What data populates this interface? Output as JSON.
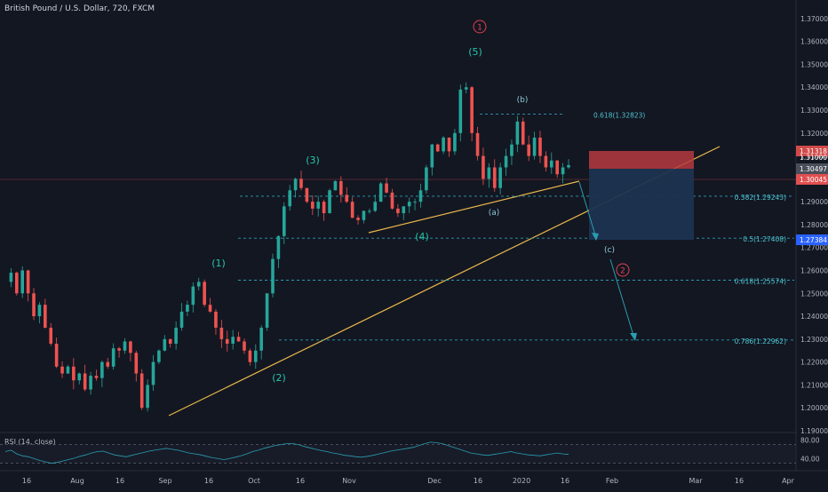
{
  "chart_data": {
    "type": "candlestick",
    "title": "British Pound / U.S. Dollar, 720, FXCM",
    "y_ticks": [
      "1.37000",
      "1.36000",
      "1.35000",
      "1.34000",
      "1.33000",
      "1.32000",
      "1.31000",
      "1.30000",
      "1.29000",
      "1.28000",
      "1.27000",
      "1.26000",
      "1.25000",
      "1.24000",
      "1.23000",
      "1.22000",
      "1.21000",
      "1.20000",
      "1.19000"
    ],
    "ylim": [
      1.19,
      1.375
    ],
    "x_ticks": [
      "16",
      "Aug",
      "16",
      "Sep",
      "16",
      "Oct",
      "16",
      "Nov",
      "Dec",
      "16",
      "2020",
      "16",
      "Feb",
      "Mar",
      "16",
      "Apr"
    ],
    "price_tags": [
      {
        "label": "1.31318",
        "color": "#d14a4a"
      },
      {
        "label": "1.31000",
        "color": "#131722"
      },
      {
        "label": "1.30497",
        "color": "#4a4e5a"
      },
      {
        "label": "1.30045",
        "color": "#e05050"
      },
      {
        "label": "1.27384",
        "color": "#2962ff"
      }
    ],
    "fib_levels": [
      {
        "label": "0.618(1.32823)",
        "value": 1.32823
      },
      {
        "label": "0.382(1.29243)",
        "value": 1.29243
      },
      {
        "label": "0.5(1.27408)",
        "value": 1.27408
      },
      {
        "label": "0.618(1.25574)",
        "value": 1.25574
      },
      {
        "label": "0.786(1.22962)",
        "value": 1.22962
      }
    ],
    "wave_labels": [
      "(1)",
      "(2)",
      "(3)",
      "(4)",
      "(5)",
      "(a)",
      "(b)",
      "(c)"
    ],
    "circled_labels": [
      "1",
      "2"
    ],
    "price_path": [
      1.255,
      1.259,
      1.25,
      1.26,
      1.25,
      1.24,
      1.245,
      1.235,
      1.228,
      1.218,
      1.215,
      1.218,
      1.212,
      1.215,
      1.208,
      1.214,
      1.213,
      1.22,
      1.218,
      1.226,
      1.225,
      1.229,
      1.224,
      1.215,
      1.2,
      1.21,
      1.22,
      1.225,
      1.23,
      1.228,
      1.235,
      1.242,
      1.245,
      1.253,
      1.255,
      1.245,
      1.242,
      1.235,
      1.23,
      1.228,
      1.231,
      1.229,
      1.225,
      1.22,
      1.225,
      1.235,
      1.25,
      1.265,
      1.275,
      1.288,
      1.295,
      1.3,
      1.296,
      1.29,
      1.287,
      1.29,
      1.285,
      1.295,
      1.299,
      1.293,
      1.29,
      1.283,
      1.282,
      1.286,
      1.286,
      1.29,
      1.298,
      1.294,
      1.287,
      1.285,
      1.288,
      1.29,
      1.29,
      1.295,
      1.305,
      1.315,
      1.312,
      1.318,
      1.312,
      1.32,
      1.339,
      1.34,
      1.32,
      1.31,
      1.3,
      1.305,
      1.296,
      1.305,
      1.31,
      1.315,
      1.325,
      1.315,
      1.31,
      1.318,
      1.31,
      1.305,
      1.308,
      1.302,
      1.305,
      1.306
    ],
    "rsi": {
      "label": "RSI (14, close)",
      "ticks": [
        "80.00",
        "40.00"
      ],
      "levels": [
        70,
        30
      ],
      "values": [
        55,
        58,
        50,
        46,
        44,
        40,
        36,
        33,
        30,
        32,
        35,
        38,
        41,
        45,
        48,
        52,
        55,
        56,
        52,
        48,
        46,
        44,
        47,
        50,
        53,
        56,
        58,
        60,
        62,
        60,
        58,
        55,
        52,
        50,
        48,
        45,
        42,
        40,
        38,
        40,
        43,
        46,
        50,
        55,
        58,
        62,
        65,
        68,
        70,
        72,
        72,
        70,
        66,
        63,
        60,
        57,
        55,
        52,
        50,
        47,
        46,
        44,
        43,
        45,
        47,
        50,
        53,
        56,
        58,
        60,
        62,
        64,
        68,
        72,
        75,
        74,
        72,
        68,
        64,
        60,
        56,
        52,
        50,
        48,
        47,
        49,
        51,
        53,
        55,
        52,
        50,
        48,
        47,
        46,
        48,
        50,
        52,
        50,
        49
      ]
    }
  }
}
